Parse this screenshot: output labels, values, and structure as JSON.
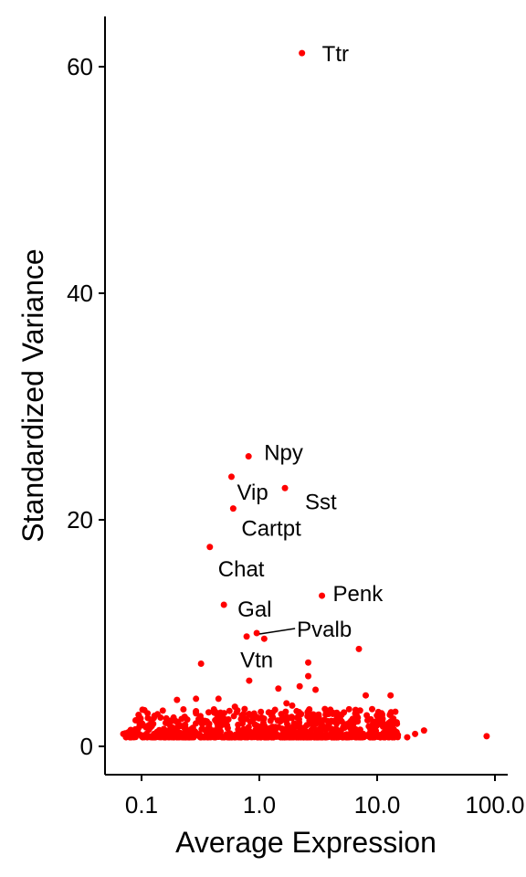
{
  "chart_data": {
    "type": "scatter",
    "xlabel": "Average Expression",
    "ylabel": "Standardized Variance",
    "x_scale": "log10",
    "xlim": [
      0.05,
      140
    ],
    "ylim": [
      -2.5,
      64
    ],
    "x_ticks": [
      0.1,
      1,
      10,
      100
    ],
    "x_tick_labels": [
      "0.1",
      "1.0",
      "10.0",
      "100.0"
    ],
    "y_ticks": [
      0,
      20,
      40,
      60
    ],
    "y_tick_labels": [
      "0",
      "20",
      "40",
      "60"
    ],
    "grid": false,
    "legend": "none",
    "point_color": "#ff0000",
    "labeled_genes": [
      {
        "label": "Ttr",
        "x": 2.3,
        "y": 61.2
      },
      {
        "label": "Npy",
        "x": 0.81,
        "y": 25.6
      },
      {
        "label": "Vip",
        "x": 0.58,
        "y": 23.8
      },
      {
        "label": "Sst",
        "x": 1.65,
        "y": 22.8
      },
      {
        "label": "Cartpt",
        "x": 0.6,
        "y": 21.0
      },
      {
        "label": "Chat",
        "x": 0.38,
        "y": 17.6
      },
      {
        "label": "Penk",
        "x": 3.4,
        "y": 13.3
      },
      {
        "label": "Gal",
        "x": 0.5,
        "y": 12.5
      },
      {
        "label": "Pvalb",
        "x": 0.95,
        "y": 10.0
      },
      {
        "label": "Vtn",
        "x": 0.78,
        "y": 9.7
      }
    ],
    "points": [
      {
        "x": 1.1,
        "y": 9.5
      },
      {
        "x": 7.0,
        "y": 8.6
      },
      {
        "x": 0.32,
        "y": 7.3
      },
      {
        "x": 2.6,
        "y": 7.4
      },
      {
        "x": 2.6,
        "y": 6.2
      },
      {
        "x": 0.82,
        "y": 5.8
      },
      {
        "x": 1.45,
        "y": 5.1
      },
      {
        "x": 2.2,
        "y": 5.3
      },
      {
        "x": 3.0,
        "y": 5.0
      },
      {
        "x": 8.0,
        "y": 4.5
      },
      {
        "x": 13.0,
        "y": 4.5
      },
      {
        "x": 0.2,
        "y": 4.1
      },
      {
        "x": 0.29,
        "y": 4.2
      },
      {
        "x": 0.45,
        "y": 4.2
      },
      {
        "x": 1.7,
        "y": 3.8
      },
      {
        "x": 1.9,
        "y": 3.6
      },
      {
        "x": 3.6,
        "y": 3.3
      },
      {
        "x": 11.0,
        "y": 2.7
      },
      {
        "x": 0.62,
        "y": 3.5
      },
      {
        "x": 0.75,
        "y": 3.3
      },
      {
        "x": 1.2,
        "y": 3.0
      },
      {
        "x": 5.0,
        "y": 2.2
      },
      {
        "x": 85.0,
        "y": 0.9
      },
      {
        "x": 25.0,
        "y": 1.4
      },
      {
        "x": 21.0,
        "y": 1.1
      },
      {
        "x": 18.0,
        "y": 0.8
      },
      {
        "x": 15.0,
        "y": 1.0
      },
      {
        "x": 14.0,
        "y": 1.3
      },
      {
        "x": 0.07,
        "y": 1.1
      },
      {
        "x": 0.08,
        "y": 1.0
      },
      {
        "x": 0.09,
        "y": 1.2
      },
      {
        "x": 0.1,
        "y": 0.9
      },
      {
        "x": 0.11,
        "y": 1.1
      },
      {
        "x": 0.13,
        "y": 1.0
      },
      {
        "x": 0.15,
        "y": 1.2
      },
      {
        "x": 0.17,
        "y": 1.4
      }
    ],
    "dense_cluster": {
      "x_range": [
        0.07,
        15
      ],
      "y_range": [
        0.5,
        3.0
      ],
      "count": 900
    }
  }
}
